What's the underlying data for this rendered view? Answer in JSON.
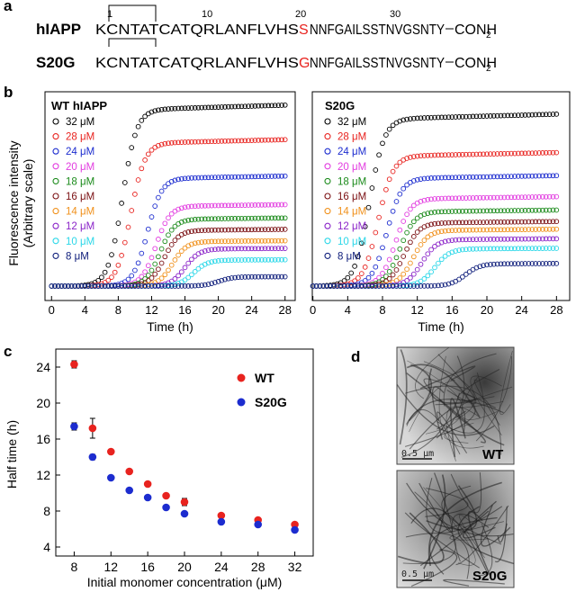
{
  "panel_labels": {
    "a": "a",
    "b": "b",
    "c": "c",
    "d": "d"
  },
  "panel_a": {
    "positions": {
      "p1": "1",
      "p10": "10",
      "p20": "20",
      "p30": "30"
    },
    "sequences": [
      {
        "name": "hIAPP",
        "pre": "KCNTATCATQRLANFLVHS",
        "mut": "S",
        "post": "NNFGAILSSTNVGSNTY",
        "cterm": "CONH",
        "sub": "2"
      },
      {
        "name": "S20G",
        "pre": "KCNTATCATQRLANFLVHS",
        "mut": "G",
        "post": "NNFGAILSSTNVGSNTY",
        "cterm": "CONH",
        "sub": "2"
      }
    ],
    "mut_color": "#e8231f"
  },
  "panel_b": {
    "ylabel": "Fluorescence intensity",
    "ylabel2": "(Arbitrary scale)",
    "xlabel": "Time (h)",
    "xticks": [
      "0",
      "4",
      "8",
      "12",
      "16",
      "20",
      "24",
      "28"
    ],
    "series_colors": [
      "#000000",
      "#e8231f",
      "#1c2ccf",
      "#e23ce0",
      "#1a8a1a",
      "#7a0f12",
      "#f0901a",
      "#8a23c8",
      "#2ad7e8",
      "#0d1c7a"
    ],
    "concentrations": [
      "32 μM",
      "28 μM",
      "24 μM",
      "20 μM",
      "18 μM",
      "16 μM",
      "14 μM",
      "12 μM",
      "10 μM",
      "8 μM"
    ]
  },
  "chart_data": [
    {
      "type": "scatter",
      "title": "WT hIAPP",
      "xlabel": "Time (h)",
      "ylabel": "Fluorescence intensity (Arbitrary scale)",
      "xlim": [
        -1,
        29
      ],
      "ylim": [
        0,
        1
      ],
      "note": "sigmoidal aggregation curves, one per concentration",
      "series": [
        {
          "name": "32 μM",
          "baseline": 0.0,
          "plateau": 0.95,
          "t_half": 8.5
        },
        {
          "name": "28 μM",
          "baseline": 0.0,
          "plateau": 0.77,
          "t_half": 9.5
        },
        {
          "name": "24 μM",
          "baseline": 0.0,
          "plateau": 0.58,
          "t_half": 11.5
        },
        {
          "name": "20 μM",
          "baseline": 0.0,
          "plateau": 0.43,
          "t_half": 12.5
        },
        {
          "name": "18 μM",
          "baseline": 0.0,
          "plateau": 0.36,
          "t_half": 13.0
        },
        {
          "name": "16 μM",
          "baseline": 0.0,
          "plateau": 0.3,
          "t_half": 13.5
        },
        {
          "name": "14 μM",
          "baseline": 0.0,
          "plateau": 0.24,
          "t_half": 14.5
        },
        {
          "name": "12 μM",
          "baseline": 0.0,
          "plateau": 0.2,
          "t_half": 16.0
        },
        {
          "name": "10 μM",
          "baseline": 0.0,
          "plateau": 0.14,
          "t_half": 17.0
        },
        {
          "name": "8 μM",
          "baseline": 0.0,
          "plateau": 0.05,
          "t_half": 20.0
        }
      ]
    },
    {
      "type": "scatter",
      "title": "S20G",
      "xlabel": "Time (h)",
      "xlim": [
        -1,
        29
      ],
      "ylim": [
        0,
        1
      ],
      "series": [
        {
          "name": "32 μM",
          "baseline": 0.0,
          "plateau": 0.9,
          "t_half": 6.5
        },
        {
          "name": "28 μM",
          "baseline": 0.0,
          "plateau": 0.7,
          "t_half": 7.5
        },
        {
          "name": "24 μM",
          "baseline": 0.0,
          "plateau": 0.58,
          "t_half": 8.5
        },
        {
          "name": "20 μM",
          "baseline": 0.0,
          "plateau": 0.47,
          "t_half": 9.5
        },
        {
          "name": "18 μM",
          "baseline": 0.0,
          "plateau": 0.4,
          "t_half": 10.0
        },
        {
          "name": "16 μM",
          "baseline": 0.0,
          "plateau": 0.34,
          "t_half": 10.5
        },
        {
          "name": "14 μM",
          "baseline": 0.0,
          "plateau": 0.3,
          "t_half": 11.5
        },
        {
          "name": "12 μM",
          "baseline": 0.0,
          "plateau": 0.25,
          "t_half": 12.5
        },
        {
          "name": "10 μM",
          "baseline": 0.0,
          "plateau": 0.2,
          "t_half": 14.0
        },
        {
          "name": "8 μM",
          "baseline": 0.0,
          "plateau": 0.12,
          "t_half": 17.5
        }
      ]
    },
    {
      "type": "scatter",
      "xlabel": "Initial monomer concentration (μM)",
      "ylabel": "Half time (h)",
      "xlim": [
        6,
        34
      ],
      "ylim": [
        3,
        26
      ],
      "xticks": [
        8,
        12,
        16,
        20,
        24,
        28,
        32
      ],
      "yticks": [
        4,
        8,
        12,
        16,
        20,
        24
      ],
      "legend": "top-right",
      "series": [
        {
          "name": "WT",
          "color": "#e8231f",
          "x": [
            8,
            10,
            12,
            14,
            16,
            18,
            20,
            24,
            28,
            32
          ],
          "y": [
            24.3,
            17.2,
            14.6,
            12.4,
            11.0,
            9.7,
            9.0,
            7.5,
            7.0,
            6.5
          ],
          "err": [
            0.4,
            1.1,
            0.2,
            0.2,
            0.2,
            0.2,
            0.4,
            0.2,
            0.2,
            0.2
          ]
        },
        {
          "name": "S20G",
          "color": "#1c2ccf",
          "x": [
            8,
            10,
            12,
            14,
            16,
            18,
            20,
            24,
            28,
            32
          ],
          "y": [
            17.4,
            14.0,
            11.7,
            10.3,
            9.5,
            8.4,
            7.7,
            6.8,
            6.5,
            5.9
          ],
          "err": [
            0.4,
            0.3,
            0.2,
            0.2,
            0.2,
            0.2,
            0.2,
            0.2,
            0.2,
            0.2
          ]
        }
      ]
    }
  ],
  "panel_d": {
    "images": [
      {
        "label": "WT",
        "scale": "0.5 μm"
      },
      {
        "label": "S20G",
        "scale": "0.5 μm"
      }
    ]
  }
}
